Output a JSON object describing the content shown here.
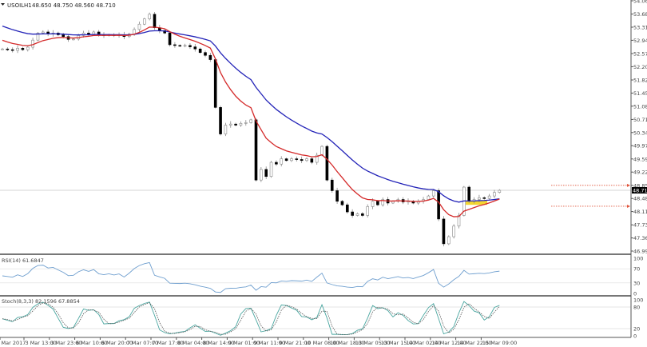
{
  "header": {
    "symbol": "USOILH1",
    "ohlc": "48.650 48.750 48.560 48.710"
  },
  "colors": {
    "fast_ma": "#d42a2a",
    "slow_ma": "#2424b8",
    "rsi": "#6f9fcf",
    "stoch_main": "#4aa6a0",
    "stoch_signal": "#555555",
    "bull": "#ffffff",
    "bear": "#000000",
    "levels": "#e0553c",
    "highlight": "#f2d21b"
  },
  "chart_data": [
    {
      "type": "candlestick",
      "title": "USOILH1",
      "ylim": [
        46.995,
        54.06
      ],
      "y_ticks": [
        "54.060",
        "53.685",
        "53.315",
        "52.945",
        "52.570",
        "52.200",
        "51.825",
        "51.455",
        "51.085",
        "50.710",
        "50.340",
        "49.970",
        "49.595",
        "49.225",
        "48.850",
        "48.480",
        "48.110",
        "47.735",
        "47.365",
        "46.995"
      ],
      "x_ticks": [
        "Mar 2017",
        "3 Mar 13:00",
        "3 Mar 23:00",
        "6 Mar 10:00",
        "6 Mar 20:00",
        "7 Mar 07:00",
        "7 Mar 17:00",
        "8 Mar 04:00",
        "8 Mar 14:00",
        "9 Mar 01:00",
        "9 Mar 11:00",
        "9 Mar 21:00",
        "10 Mar 08:00",
        "10 Mar 18:00",
        "13 Mar 05:00",
        "13 Mar 15:00",
        "14 Mar 02:00",
        "14 Mar 12:00",
        "14 Mar 22:00",
        "15 Mar 09:00"
      ],
      "current_price": "48.710",
      "levels": [
        48.85,
        48.26
      ],
      "highlight_range": [
        48.3,
        48.42
      ],
      "closes": [
        52.7,
        52.68,
        52.66,
        52.72,
        52.68,
        52.75,
        52.95,
        53.15,
        53.18,
        53.12,
        53.15,
        53.1,
        53.05,
        52.97,
        52.98,
        53.08,
        53.15,
        53.12,
        53.18,
        53.1,
        53.08,
        53.1,
        53.08,
        53.1,
        53.05,
        53.12,
        53.25,
        53.4,
        53.55,
        53.68,
        53.3,
        53.22,
        53.15,
        52.82,
        52.8,
        52.79,
        52.8,
        52.76,
        52.7,
        52.6,
        52.52,
        52.4,
        51.05,
        50.3,
        50.55,
        50.58,
        50.55,
        50.6,
        50.62,
        50.7,
        49.0,
        49.3,
        49.1,
        49.5,
        49.45,
        49.6,
        49.55,
        49.6,
        49.58,
        49.55,
        49.6,
        49.5,
        49.7,
        49.95,
        49.0,
        48.7,
        48.4,
        48.3,
        48.1,
        48.0,
        48.05,
        48.0,
        48.25,
        48.4,
        48.3,
        48.45,
        48.35,
        48.4,
        48.45,
        48.38,
        48.4,
        48.35,
        48.4,
        48.45,
        48.55,
        48.7,
        47.9,
        47.2,
        47.4,
        47.7,
        48.0,
        48.8,
        48.4,
        48.45,
        48.5,
        48.48,
        48.55,
        48.65,
        48.71
      ]
    },
    {
      "type": "line",
      "title": "RSI(14) 61.6847",
      "ylim": [
        0,
        100
      ],
      "y_ticks": [
        "100",
        "70",
        "30",
        "0"
      ]
    },
    {
      "type": "line",
      "title": "Stoch(8,3,3) 82.1596 67.8854",
      "ylim": [
        0,
        100
      ],
      "y_ticks": [
        "100",
        "80",
        "20",
        "0"
      ]
    }
  ]
}
